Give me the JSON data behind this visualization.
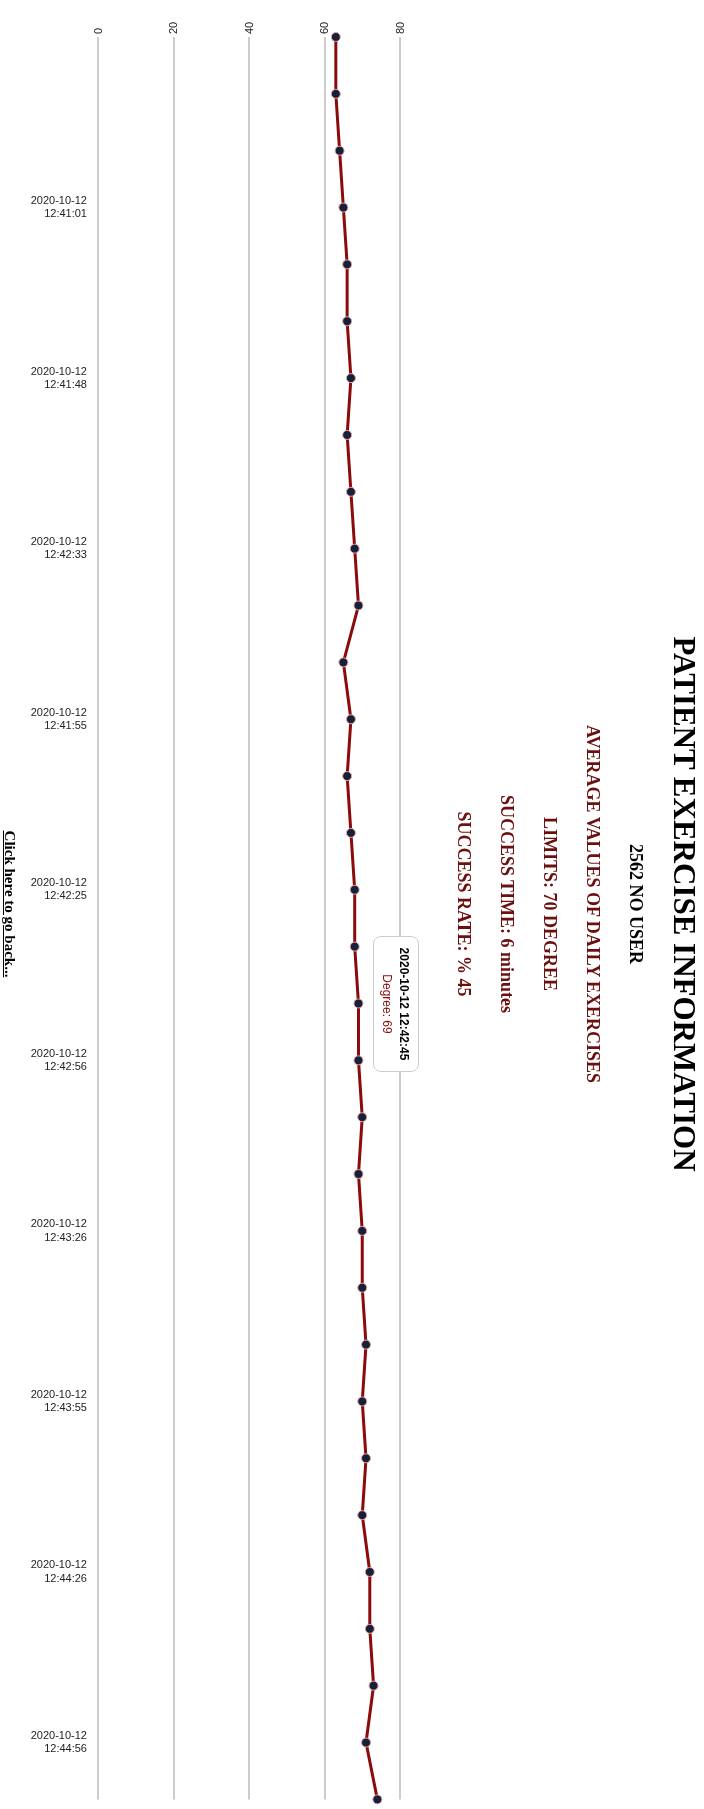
{
  "chart_data": {
    "type": "line",
    "title": "PATIENT EXERCISE INFORMATION",
    "subtitle": "2562 NO USER",
    "annotations": [
      "AVERAGE VALUES OF DAILY EXERCISES",
      "LIMITS: 70 DEGREE",
      "SUCCESS TIME: 6 minutes",
      "SUCCESS RATE: % 45",
      "2020-10-12 12:42:45\nDegree: 69",
      "Click here to go back..."
    ],
    "categories": [
      null,
      null,
      null,
      "2020-10-12 12:41:01",
      null,
      null,
      "2020-10-12 12:41:48",
      null,
      null,
      "2020-10-12 12:42:33",
      null,
      null,
      "2020-10-12 12:41:55",
      null,
      null,
      "2020-10-12 12:42:25",
      null,
      null,
      "2020-10-12 12:42:56",
      null,
      null,
      "2020-10-12 12:43:26",
      null,
      null,
      "2020-10-12 12:43:55",
      null,
      null,
      "2020-10-12 12:44:26",
      null,
      null,
      "2020-10-12 12:44:56",
      null
    ],
    "series": [
      {
        "color": "#8b0a0a",
        "values": [
          63,
          63,
          64,
          65,
          66,
          66,
          67,
          66,
          67,
          68,
          69,
          65,
          67,
          66,
          67,
          68,
          68,
          69,
          69,
          70,
          69,
          70,
          70,
          71,
          70,
          71,
          70,
          72,
          72,
          73,
          71,
          74
        ]
      }
    ],
    "orientation": "horizontal",
    "xlim": [
      0,
      80
    ],
    "xticks": [
      0,
      20,
      40,
      60,
      80
    ],
    "grid": "x",
    "marker": "circle",
    "line_style": "solid"
  }
}
